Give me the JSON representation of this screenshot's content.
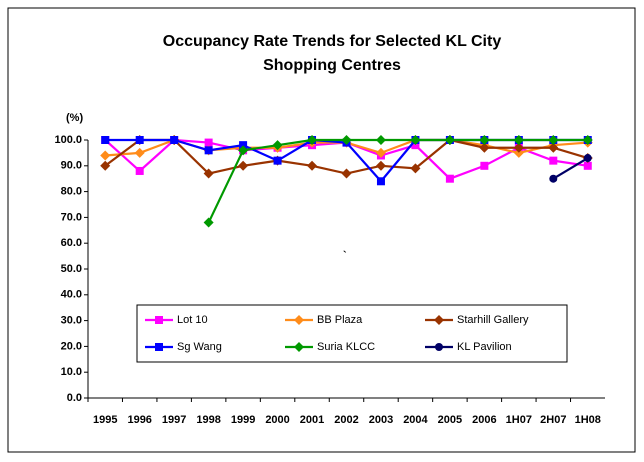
{
  "chart_data": {
    "type": "line",
    "title": "Occupancy Rate Trends for Selected KL City Shopping Centres",
    "y_label": "(%)",
    "annotation": "`",
    "categories": [
      "1995",
      "1996",
      "1997",
      "1998",
      "1999",
      "2000",
      "2001",
      "2002",
      "2003",
      "2004",
      "2005",
      "2006",
      "1H07",
      "2H07",
      "1H08"
    ],
    "series": [
      {
        "name": "Lot 10",
        "color": "#ff00ff",
        "marker": "square",
        "values": [
          100,
          88,
          100,
          99,
          96,
          97,
          98,
          99,
          94,
          98,
          85,
          90,
          97,
          92,
          90
        ]
      },
      {
        "name": "BB Plaza",
        "color": "#ff8c1a",
        "marker": "diamond",
        "values": [
          94,
          95,
          100,
          96,
          97,
          97,
          99,
          99,
          95,
          100,
          100,
          98,
          95,
          98,
          99
        ]
      },
      {
        "name": "Starhill Gallery",
        "color": "#993300",
        "marker": "diamond",
        "values": [
          90,
          100,
          100,
          87,
          90,
          92,
          90,
          87,
          90,
          89,
          100,
          97,
          97,
          97,
          93
        ]
      },
      {
        "name": "Sg Wang",
        "color": "#0000ff",
        "marker": "square",
        "values": [
          100,
          100,
          100,
          96,
          98,
          92,
          100,
          99,
          84,
          100,
          100,
          100,
          100,
          100,
          100
        ]
      },
      {
        "name": "Suria KLCC",
        "color": "#009900",
        "marker": "diamond",
        "values": [
          null,
          null,
          null,
          68,
          96,
          98,
          100,
          100,
          100,
          100,
          100,
          100,
          100,
          100,
          100
        ]
      },
      {
        "name": "KL Pavilion",
        "color": "#000066",
        "marker": "circle",
        "values": [
          null,
          null,
          null,
          null,
          null,
          null,
          null,
          null,
          null,
          null,
          null,
          null,
          null,
          85,
          93
        ]
      }
    ],
    "ylim": [
      0,
      100
    ],
    "yticks": [
      {
        "value": 0,
        "label": "0.0"
      },
      {
        "value": 10,
        "label": "10.0"
      },
      {
        "value": 20,
        "label": "20.0"
      },
      {
        "value": 30,
        "label": "30.0"
      },
      {
        "value": 40,
        "label": "40.0"
      },
      {
        "value": 50,
        "label": "50.0"
      },
      {
        "value": 60,
        "label": "60.0"
      },
      {
        "value": 70,
        "label": "70.0"
      },
      {
        "value": 80,
        "label": "80.0"
      },
      {
        "value": 90,
        "label": "90.0"
      },
      {
        "value": 100,
        "label": "100.0"
      }
    ],
    "grid": false,
    "legend": "bottom"
  }
}
